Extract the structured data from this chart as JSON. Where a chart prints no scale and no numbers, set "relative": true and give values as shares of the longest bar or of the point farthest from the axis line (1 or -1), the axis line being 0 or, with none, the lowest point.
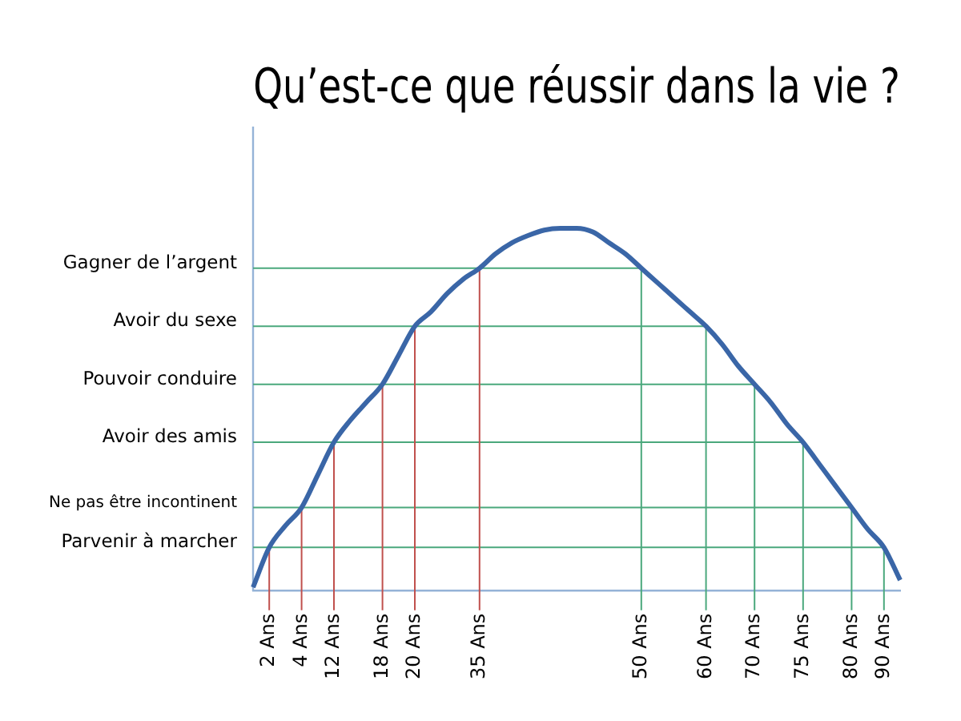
{
  "chart_data": {
    "type": "line",
    "title": "Qu’est-ce que réussir dans la vie ?",
    "relative": true,
    "legend": false,
    "grid": false,
    "tick_labels": "x",
    "marker": "none",
    "categories": [
      null,
      "2 Ans",
      null,
      "4 Ans",
      null,
      "12 Ans",
      null,
      null,
      "18 Ans",
      null,
      "20 Ans",
      null,
      null,
      null,
      "35 Ans",
      null,
      null,
      null,
      null,
      null,
      null,
      null,
      null,
      null,
      "50 Ans",
      null,
      null,
      null,
      "60 Ans",
      null,
      null,
      "70 Ans",
      null,
      null,
      "75 Ans",
      null,
      null,
      "80 Ans",
      null,
      "90 Ans",
      null
    ],
    "series": [
      {
        "color": "#3a66a7",
        "values": [
          0.01,
          0.12,
          0.18,
          0.23,
          0.32,
          0.41,
          0.47,
          0.52,
          0.57,
          0.65,
          0.73,
          0.77,
          0.82,
          0.86,
          0.89,
          0.93,
          0.96,
          0.98,
          0.995,
          1,
          1,
          0.99,
          0.96,
          0.93,
          0.89,
          0.85,
          0.81,
          0.77,
          0.73,
          0.68,
          0.62,
          0.57,
          0.52,
          0.46,
          0.41,
          0.35,
          0.29,
          0.23,
          0.17,
          0.12,
          0.03
        ]
      }
    ],
    "ref_lines": [
      {
        "axis": "y",
        "value": 0.89,
        "label": "Gagner de l’argent",
        "color": "#4aa87c"
      },
      {
        "axis": "y",
        "value": 0.73,
        "label": "Avoir du sexe",
        "color": "#4aa87c"
      },
      {
        "axis": "y",
        "value": 0.57,
        "label": "Pouvoir conduire",
        "color": "#4aa87c"
      },
      {
        "axis": "y",
        "value": 0.41,
        "label": "Avoir des amis",
        "color": "#4aa87c"
      },
      {
        "axis": "y",
        "value": 0.23,
        "label": "Ne pas être incontinent",
        "color": "#4aa87c"
      },
      {
        "axis": "y",
        "value": 0.12,
        "label": "Parvenir à marcher",
        "color": "#4aa87c"
      },
      {
        "axis": "x",
        "value": "2 Ans",
        "color": "#c0504d"
      },
      {
        "axis": "x",
        "value": "4 Ans",
        "color": "#c0504d"
      },
      {
        "axis": "x",
        "value": "12 Ans",
        "color": "#c0504d"
      },
      {
        "axis": "x",
        "value": "18 Ans",
        "color": "#c0504d"
      },
      {
        "axis": "x",
        "value": "20 Ans",
        "color": "#c0504d"
      },
      {
        "axis": "x",
        "value": "35 Ans",
        "color": "#c0504d"
      },
      {
        "axis": "x",
        "value": "50 Ans",
        "color": "#4aa87c"
      },
      {
        "axis": "x",
        "value": "60 Ans",
        "color": "#4aa87c"
      },
      {
        "axis": "x",
        "value": "70 Ans",
        "color": "#4aa87c"
      },
      {
        "axis": "x",
        "value": "75 Ans",
        "color": "#4aa87c"
      },
      {
        "axis": "x",
        "value": "80 Ans",
        "color": "#4aa87c"
      },
      {
        "axis": "x",
        "value": "90 Ans",
        "color": "#4aa87c"
      }
    ]
  }
}
